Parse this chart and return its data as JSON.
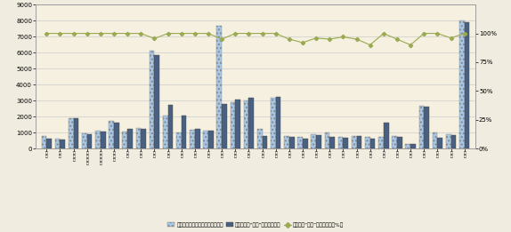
{
  "bar1": [
    800,
    600,
    1900,
    950,
    1100,
    1700,
    1050,
    1300,
    6100,
    2050,
    980,
    1150,
    1100,
    7650,
    2900,
    3000,
    1250,
    3200,
    800,
    700,
    900,
    1000,
    700,
    800,
    700,
    700,
    800,
    300,
    2650,
    1000,
    900,
    8000
  ],
  "bar2": [
    600,
    580,
    1870,
    900,
    1050,
    1600,
    1250,
    1250,
    5850,
    2750,
    2050,
    1200,
    1100,
    2800,
    3050,
    3200,
    800,
    3250,
    750,
    640,
    850,
    700,
    680,
    760,
    620,
    1600,
    750,
    270,
    2620,
    680,
    860,
    7900
  ],
  "line": [
    100,
    100,
    100,
    100,
    100,
    100,
    100,
    100,
    95.5,
    100,
    100,
    100,
    100,
    95,
    100,
    100,
    100,
    100,
    95,
    92,
    96,
    95,
    97,
    95,
    90,
    100,
    95,
    90,
    100,
    100,
    96,
    100
  ],
  "ylim_left": [
    0,
    9000
  ],
  "ylim_right": [
    0,
    125
  ],
  "yticks_left": [
    0,
    1000,
    2000,
    3000,
    4000,
    5000,
    6000,
    7000,
    8000,
    9000
  ],
  "yticks_right": [
    0,
    25,
    50,
    75,
    100
  ],
  "ytick_right_labels": [
    "0%",
    "25%",
    "50%",
    "75%",
    "100%"
  ],
  "bar1_color": "#a8c8e8",
  "bar2_color": "#4a6080",
  "line_color": "#9aaa50",
  "bg_color": "#f5f0e0",
  "fig_color": "#f0ece0",
  "legend_label1": "新办建质量监督手续的工程（项）",
  "legend_label2": "其中已签署“两书”的工程（项）",
  "legend_label3": "新建工程“两书”制度覆盖率（%）"
}
